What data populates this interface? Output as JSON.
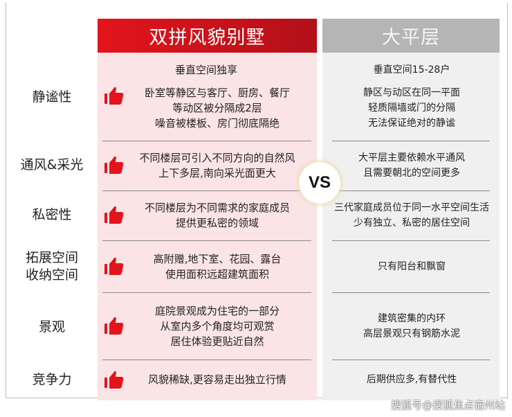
{
  "header": {
    "left": "双拼风貌别墅",
    "right": "大平层",
    "vs": "VS"
  },
  "rows": [
    {
      "label": [
        "静谧性"
      ],
      "left_sub": "垂直空间独享",
      "left": [
        "卧室等静区与客厅、厨房、餐厅",
        "等动区被分隔成2层",
        "噪音被楼板、房门彻底隔绝"
      ],
      "right_sub": "垂直空间15-28户",
      "right": [
        "静区与动区在同一平面",
        "轻质隔墙或门的分隔",
        "无法保证绝对的静谧"
      ]
    },
    {
      "label": [
        "通风&采光"
      ],
      "left": [
        "不同楼层可引入不同方向的自然风",
        "上下多层,南向采光面更大"
      ],
      "right": [
        "大平层主要依赖水平通风",
        "且需要朝北的空间更多"
      ]
    },
    {
      "label": [
        "私密性"
      ],
      "left": [
        "不同楼层为不同需求的家庭成员",
        "提供更私密的领域"
      ],
      "right": [
        "三代家庭成员位于同一水平空间生活",
        "少有独立、私密的居住空间"
      ]
    },
    {
      "label": [
        "拓展空间",
        "收纳空间"
      ],
      "left": [
        "高附赠,地下室、花园、露台",
        "使用面积远超建筑面积"
      ],
      "right": [
        "只有阳台和飘窗"
      ]
    },
    {
      "label": [
        "景观"
      ],
      "left": [
        "庭院景观成为住宅的一部分",
        "从室内多个角度均可观赏",
        "居住体验更贴近自然"
      ],
      "right": [
        "建筑密集的内环",
        "高层景观只有钢筋水泥"
      ]
    },
    {
      "label": [
        "竞争力"
      ],
      "left": [
        "风貌稀缺,更容易走出独立行情"
      ],
      "right": [
        "后期供应多,有替代性"
      ]
    }
  ],
  "icons": {
    "advantage": "thumbs-up-icon"
  },
  "colors": {
    "accent": "#e3141c",
    "left_bg": "#fbe4e6",
    "right_header": "#b5b5b5",
    "right_bg": "#f0f0f0"
  },
  "watermark": "搜狐号@搜狐焦点宿州站"
}
